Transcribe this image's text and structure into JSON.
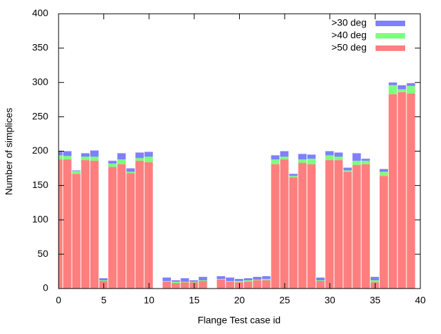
{
  "chart_data": {
    "type": "bar",
    "stacked": true,
    "xlabel": "Flange Test case id",
    "ylabel": "Number of simplices",
    "x": [
      0,
      1,
      2,
      3,
      4,
      5,
      6,
      7,
      8,
      9,
      10,
      11,
      12,
      13,
      14,
      15,
      16,
      17,
      18,
      19,
      20,
      21,
      22,
      23,
      24,
      25,
      26,
      27,
      28,
      29,
      30,
      31,
      32,
      33,
      34,
      35,
      36,
      37,
      38,
      39
    ],
    "series": [
      {
        "name": ">50 deg",
        "color": "#ff7f7f",
        "values": [
          188,
          188,
          167,
          187,
          186,
          11,
          177,
          181,
          168,
          186,
          184,
          0,
          10,
          8,
          9,
          9,
          11,
          0,
          13,
          10,
          9,
          10,
          12,
          12,
          181,
          188,
          162,
          183,
          181,
          11,
          187,
          187,
          170,
          180,
          181,
          9,
          164,
          283,
          286,
          284
        ]
      },
      {
        "name": ">40 deg",
        "color": "#7fff7f",
        "values": [
          6,
          5,
          4,
          5,
          6,
          1,
          5,
          7,
          2,
          4,
          8,
          0,
          1,
          2,
          1,
          1,
          1,
          0,
          1,
          1,
          2,
          2,
          1,
          2,
          7,
          4,
          2,
          5,
          8,
          1,
          7,
          5,
          2,
          6,
          5,
          3,
          6,
          13,
          4,
          11
        ]
      },
      {
        "name": ">30 deg",
        "color": "#7f7fff",
        "values": [
          6,
          7,
          1,
          5,
          9,
          3,
          4,
          9,
          5,
          8,
          7,
          0,
          5,
          2,
          5,
          2,
          5,
          0,
          4,
          5,
          3,
          3,
          4,
          4,
          6,
          8,
          3,
          8,
          6,
          4,
          6,
          6,
          4,
          11,
          3,
          5,
          4,
          4,
          6,
          4
        ]
      }
    ],
    "xlim": [
      0,
      40
    ],
    "xticks": [
      0,
      5,
      10,
      15,
      20,
      25,
      30,
      35,
      40
    ],
    "ylim": [
      0,
      400
    ],
    "yticks": [
      0,
      50,
      100,
      150,
      200,
      250,
      300,
      350,
      400
    ],
    "legend": "top-right",
    "grid": false
  }
}
